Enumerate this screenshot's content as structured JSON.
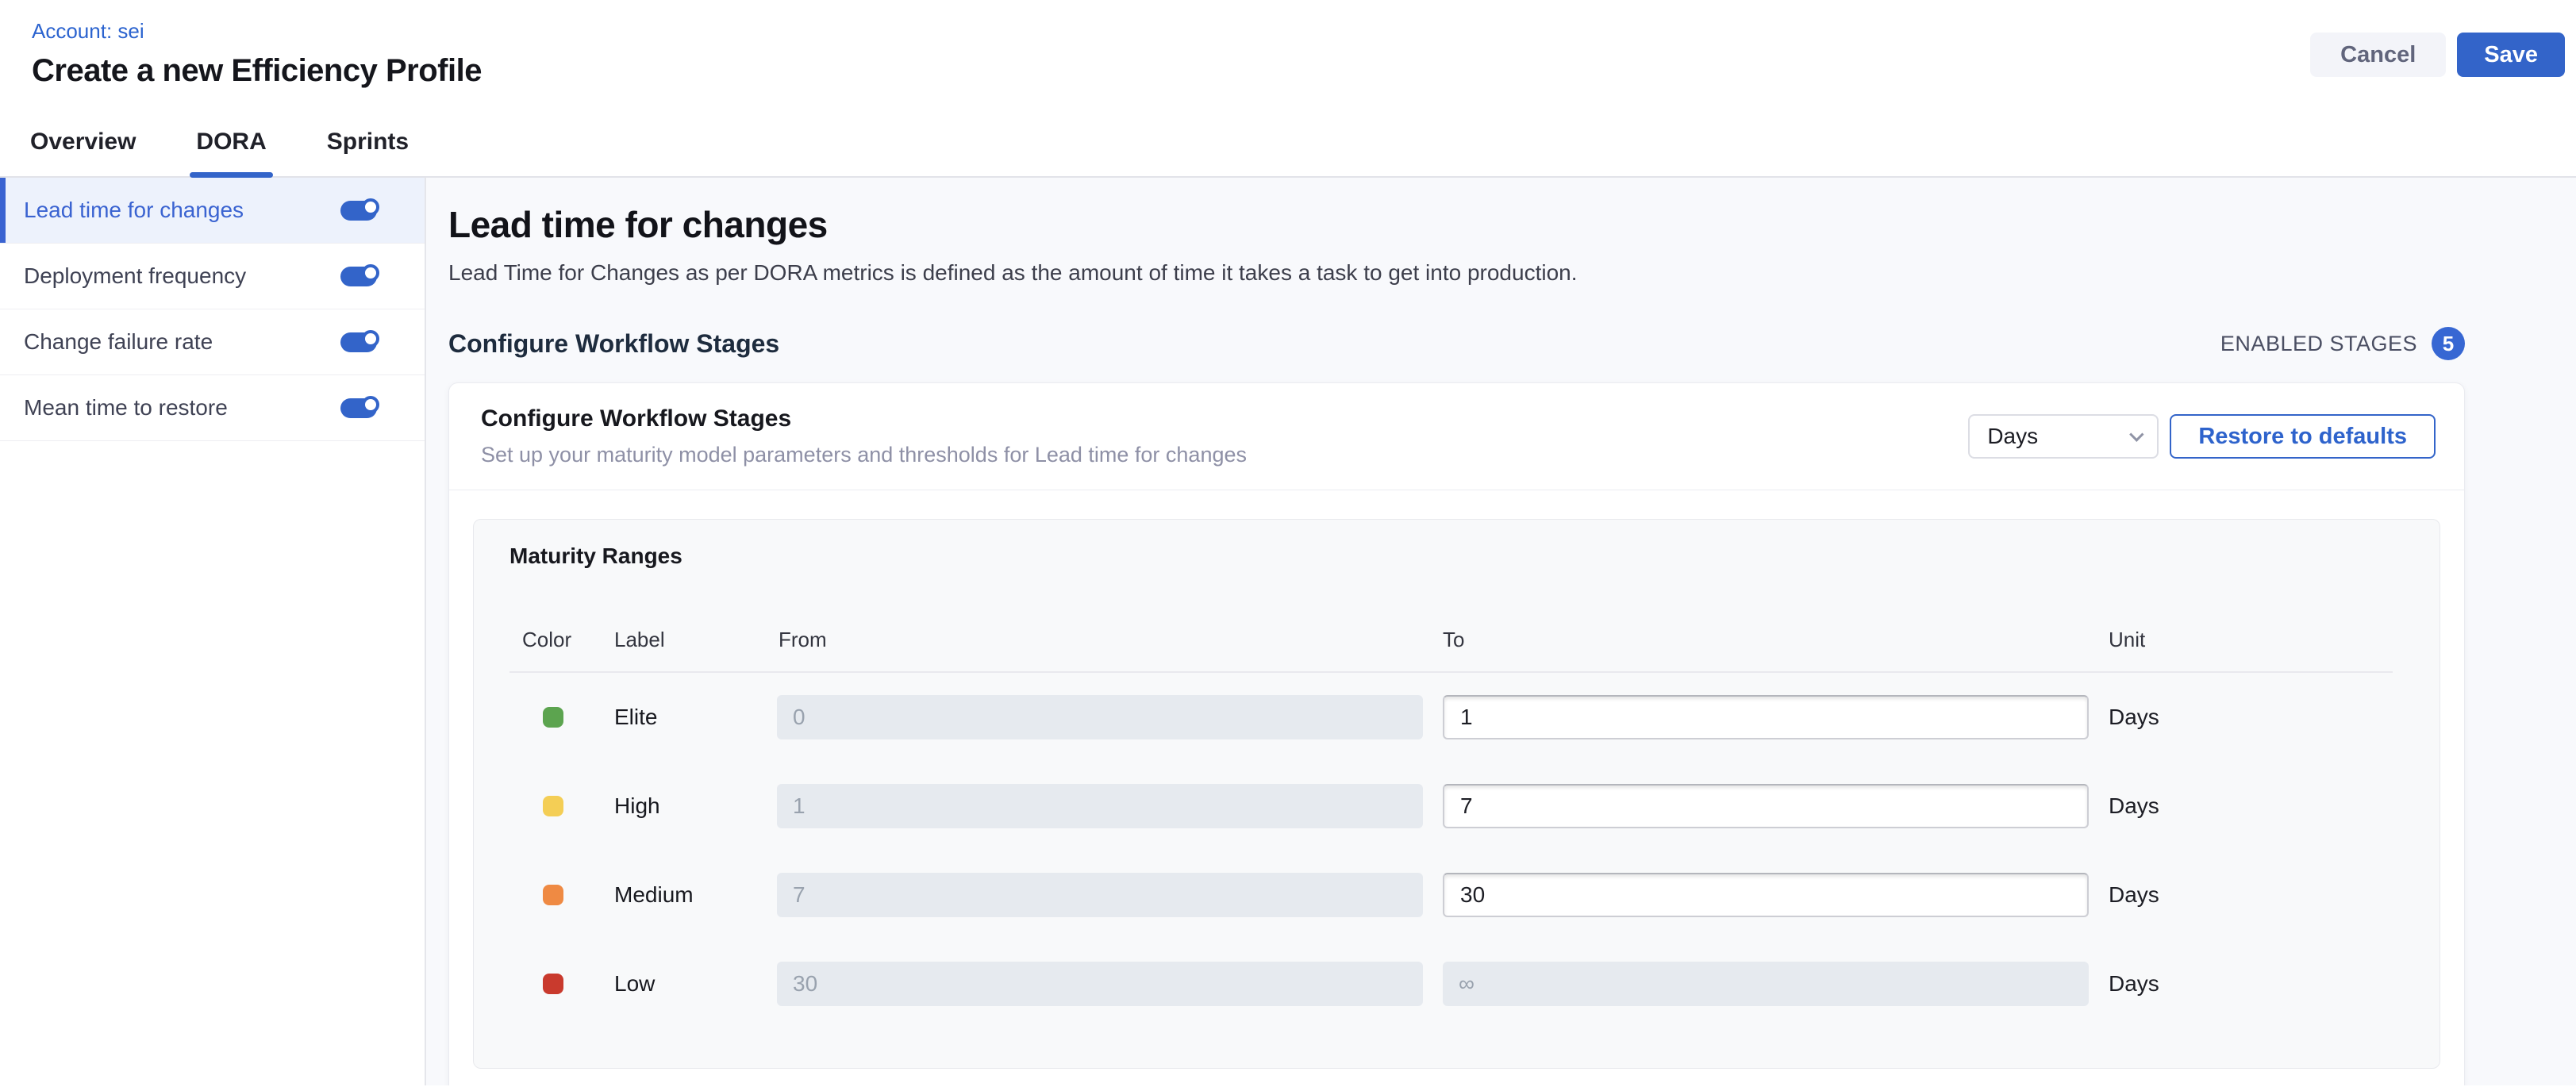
{
  "header": {
    "breadcrumb": "Account: sei",
    "title": "Create a new Efficiency Profile",
    "cancel_label": "Cancel",
    "save_label": "Save"
  },
  "tabs": [
    {
      "label": "Overview"
    },
    {
      "label": "DORA"
    },
    {
      "label": "Sprints"
    }
  ],
  "sidebar": {
    "items": [
      {
        "label": "Lead time for changes",
        "enabled": true,
        "selected": true
      },
      {
        "label": "Deployment frequency",
        "enabled": true,
        "selected": false
      },
      {
        "label": "Change failure rate",
        "enabled": true,
        "selected": false
      },
      {
        "label": "Mean time to restore",
        "enabled": true,
        "selected": false
      }
    ]
  },
  "main": {
    "title": "Lead time for changes",
    "description": "Lead Time for Changes as per DORA metrics is defined as the amount of time it takes a task to get into production.",
    "section_heading": "Configure Workflow Stages",
    "enabled_stages_label": "ENABLED STAGES",
    "enabled_stages_count": "5",
    "card": {
      "title": "Configure Workflow Stages",
      "subtitle": "Set up your maturity model parameters and thresholds for Lead time for changes",
      "unit_select_value": "Days",
      "restore_button_label": "Restore to defaults",
      "maturity": {
        "title": "Maturity Ranges",
        "columns": [
          "Color",
          "Label",
          "From",
          "To",
          "Unit"
        ],
        "rows": [
          {
            "color": "#5ca44f",
            "label": "Elite",
            "from": "0",
            "from_disabled": true,
            "to": "1",
            "to_disabled": false,
            "unit": "Days"
          },
          {
            "color": "#f4ce55",
            "label": "High",
            "from": "1",
            "from_disabled": true,
            "to": "7",
            "to_disabled": false,
            "unit": "Days"
          },
          {
            "color": "#ef8a43",
            "label": "Medium",
            "from": "7",
            "from_disabled": true,
            "to": "30",
            "to_disabled": false,
            "unit": "Days"
          },
          {
            "color": "#c93a2d",
            "label": "Low",
            "from": "30",
            "from_disabled": true,
            "to": "∞",
            "to_disabled": true,
            "unit": "Days"
          }
        ]
      }
    }
  },
  "colors": {
    "accent_blue": "#3364c9",
    "selected_item_bg": "#edf2fc",
    "main_pane_bg": "#f8f9fc",
    "disabled_input_bg": "#e6eaef"
  }
}
